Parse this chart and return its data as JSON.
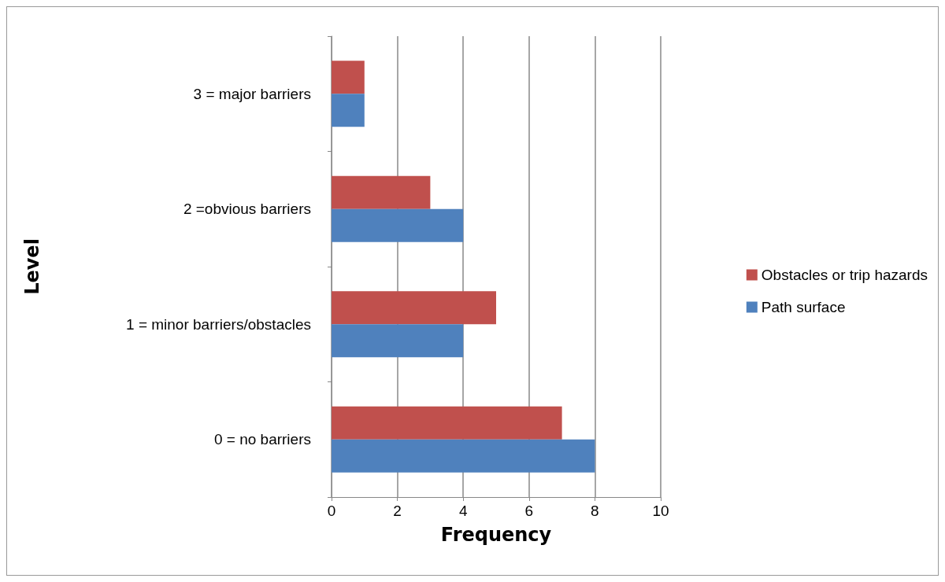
{
  "chart_data": {
    "type": "bar",
    "orientation": "horizontal",
    "xlabel": "Frequency",
    "ylabel": "Level",
    "categories": [
      "3 = major barriers",
      "2 =obvious barriers",
      "1 = minor barriers/obstacles",
      "0 = no barriers"
    ],
    "series": [
      {
        "name": "Obstacles or trip hazards",
        "color": "#c0504d",
        "values": [
          1,
          3,
          5,
          7
        ]
      },
      {
        "name": "Path surface",
        "color": "#4f81bd",
        "values": [
          1,
          4,
          4,
          8
        ]
      }
    ],
    "xlim": [
      0,
      10
    ],
    "xticks": [
      0,
      2,
      4,
      6,
      8,
      10
    ],
    "grid": "x",
    "legend": "right"
  }
}
